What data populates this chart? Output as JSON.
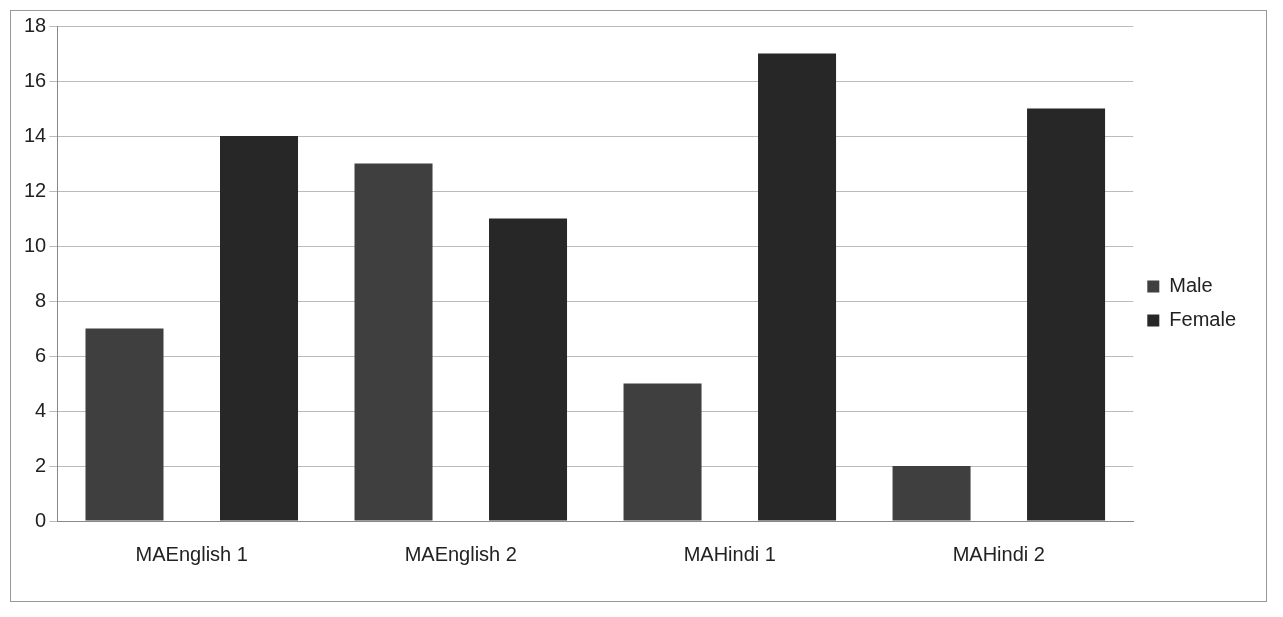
{
  "chart_data": {
    "type": "bar",
    "categories": [
      "MAEnglish 1",
      "MAEnglish 2",
      "MAHindi 1",
      "MAHindi 2"
    ],
    "series": [
      {
        "name": "Male",
        "color": "#3f3f3f",
        "values": [
          7,
          13,
          5,
          2
        ]
      },
      {
        "name": "Female",
        "color": "#272727",
        "values": [
          14,
          11,
          17,
          15
        ]
      }
    ],
    "ylim": [
      0,
      18
    ],
    "yticks": [
      0,
      2,
      4,
      6,
      8,
      10,
      12,
      14,
      16,
      18
    ],
    "grid": "y",
    "legend": "right"
  }
}
